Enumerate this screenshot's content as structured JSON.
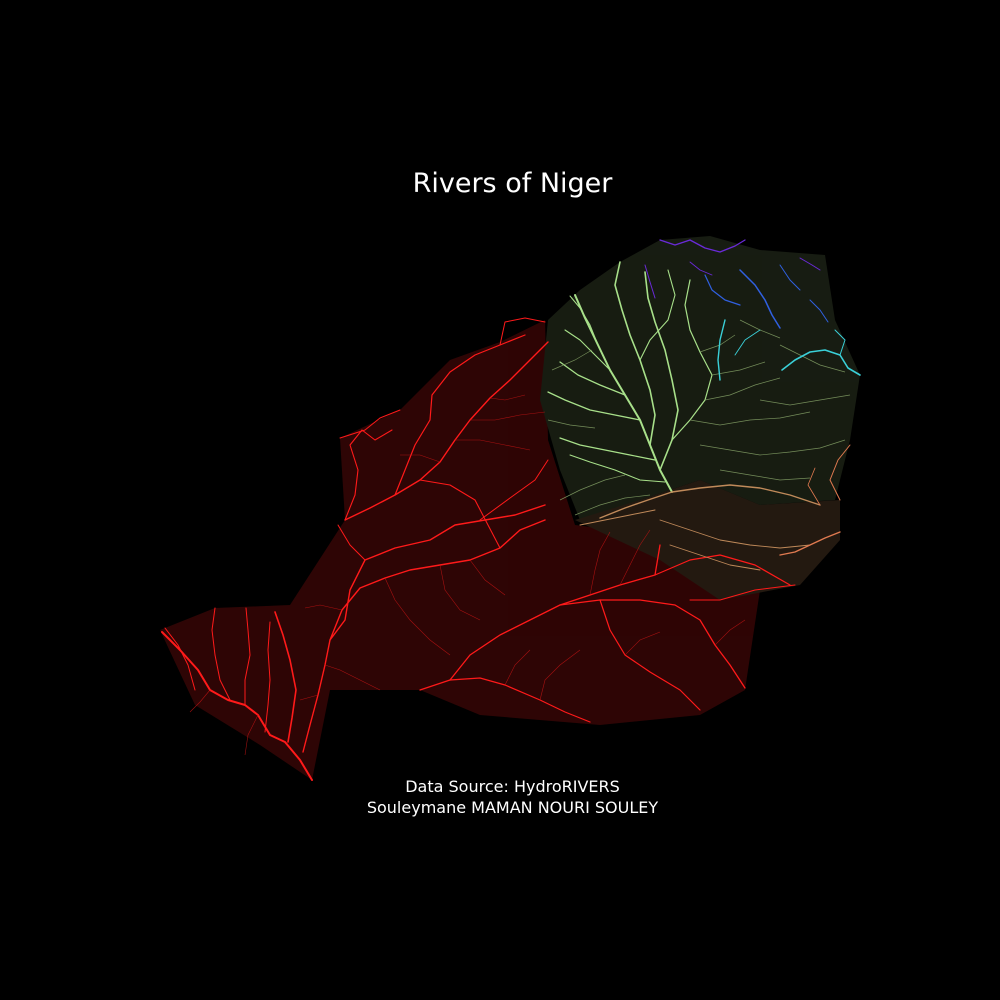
{
  "title": "Rivers of Niger",
  "credits": {
    "source": "Data Source: HydroRIVERS",
    "author": "Souleymane MAMAN NOURI SOULEY"
  },
  "colors": {
    "background": "#000000",
    "text": "#ffffff",
    "basin_west": "#ff1a1a",
    "basin_central_north": "#a8e08a",
    "basin_central": "#7f9a62",
    "basin_south_central": "#c08a5a",
    "basin_east": "#e07a50",
    "basin_northeast": "#3ad0d8",
    "basin_north_blue": "#3060e0",
    "basin_north_purple": "#6a2ad8"
  }
}
